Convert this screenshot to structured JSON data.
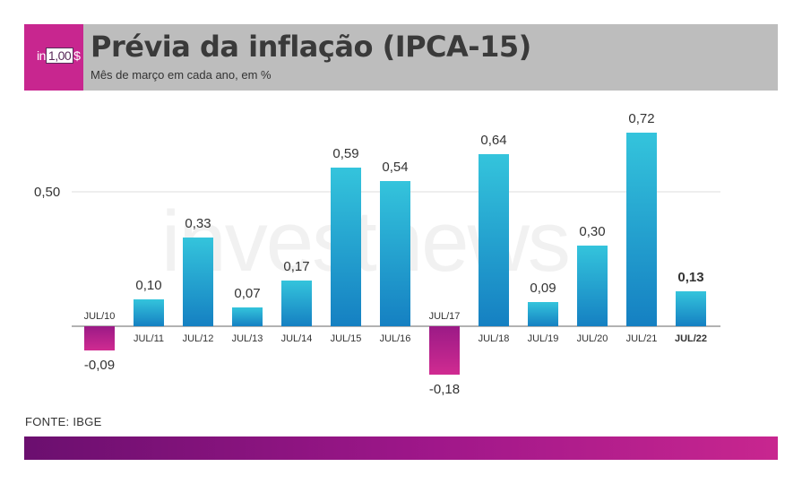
{
  "header": {
    "title": "Prévia da inflação (IPCA-15)",
    "subtitle": "Mês de março em cada ano, em %",
    "logo_prefix": "in",
    "logo_box": "1,00",
    "logo_suffix": "$"
  },
  "watermark": "investnews",
  "footer": {
    "source": "FONTE: IBGE"
  },
  "colors": {
    "positive_top": "#34c4dc",
    "positive_bottom": "#1580c2",
    "negative_top": "#9b1a86",
    "negative_bottom": "#d02b91",
    "accent": "#c8268f"
  },
  "chart_data": {
    "type": "bar",
    "title": "Prévia da inflação (IPCA-15)",
    "subtitle": "Mês de março em cada ano, em %",
    "categories": [
      "JUL/10",
      "JUL/11",
      "JUL/12",
      "JUL/13",
      "JUL/14",
      "JUL/15",
      "JUL/16",
      "JUL/17",
      "JUL/18",
      "JUL/19",
      "JUL/20",
      "JUL/21",
      "JUL/22"
    ],
    "values": [
      -0.09,
      0.1,
      0.33,
      0.07,
      0.17,
      0.59,
      0.54,
      -0.18,
      0.64,
      0.09,
      0.3,
      0.72,
      0.13
    ],
    "value_labels": [
      "-0,09",
      "0,10",
      "0,33",
      "0,07",
      "0,17",
      "0,59",
      "0,54",
      "-0,18",
      "0,64",
      "0,09",
      "0,30",
      "0,72",
      "0,13"
    ],
    "y_ticks": [
      0.5
    ],
    "y_tick_labels": [
      "0,50"
    ],
    "ylim": [
      -0.18,
      0.72
    ],
    "highlight_category": "JUL/22",
    "grid": true,
    "legend": "none"
  }
}
